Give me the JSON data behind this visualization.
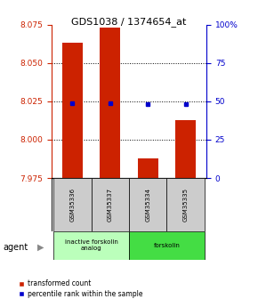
{
  "title": "GDS1038 / 1374654_at",
  "samples": [
    "GSM35336",
    "GSM35337",
    "GSM35334",
    "GSM35335"
  ],
  "bar_values": [
    8.063,
    8.073,
    7.988,
    8.013
  ],
  "percentile_values": [
    49,
    49,
    48,
    48
  ],
  "ylim_left": [
    7.975,
    8.075
  ],
  "ylim_right": [
    0,
    100
  ],
  "yticks_left": [
    7.975,
    8.0,
    8.025,
    8.05,
    8.075
  ],
  "yticks_right": [
    0,
    25,
    50,
    75,
    100
  ],
  "bar_color": "#cc2200",
  "dot_color": "#0000cc",
  "bar_width": 0.55,
  "groups": [
    {
      "label": "inactive forskolin\nanalog",
      "color": "#bbffbb",
      "samples": [
        0,
        1
      ]
    },
    {
      "label": "forskolin",
      "color": "#44dd44",
      "samples": [
        2,
        3
      ]
    }
  ],
  "agent_label": "agent",
  "legend_red": "transformed count",
  "legend_blue": "percentile rank within the sample",
  "label_area_bg": "#cccccc"
}
